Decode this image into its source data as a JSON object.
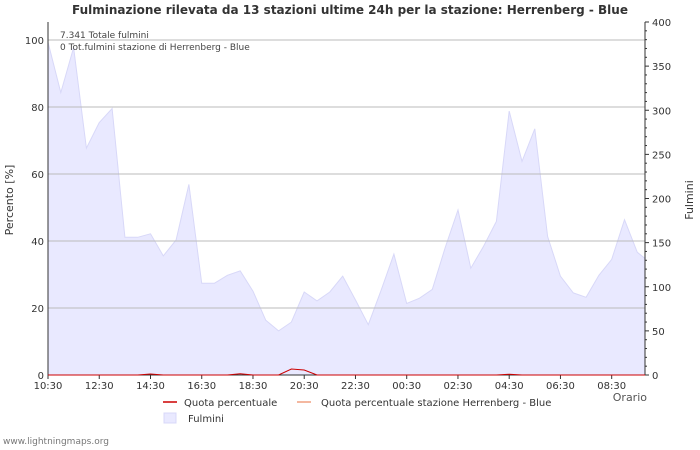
{
  "title": "Fulminazione rilevata da 13 stazioni ultime 24h per la stazione: Herrenberg - Blue",
  "annotations": {
    "total": "7.341 Totale fulmini",
    "station": "0 Tot.fulmini stazione di Herrenberg - Blue"
  },
  "footer": "www.lightningmaps.org",
  "colors": {
    "area_fill": "#e9e9ff",
    "area_stroke": "#d8d8f8",
    "quota_line": "#cc0000",
    "quota_station_line": "#f0a080",
    "grid": "#bbbbbb",
    "axis": "#333333"
  },
  "legend": [
    {
      "label": "Quota percentuale",
      "type": "line",
      "color": "#cc0000"
    },
    {
      "label": "Quota percentuale stazione Herrenberg - Blue",
      "type": "line",
      "color": "#f0a080"
    },
    {
      "label": "Fulmini",
      "type": "area",
      "color": "#e9e9ff"
    }
  ],
  "chart_data": {
    "type": "area",
    "title": "Fulminazione rilevata da 13 stazioni ultime 24h per la stazione: Herrenberg - Blue",
    "xlabel": "Orario",
    "ylabel": "Percento   [%]",
    "ylabel_right": "Fulmini",
    "ylim": [
      0,
      100
    ],
    "ylim_right": [
      0,
      400
    ],
    "yticks": [
      0,
      20,
      40,
      60,
      80,
      100
    ],
    "yticks_right": [
      0,
      50,
      100,
      150,
      200,
      250,
      300,
      350,
      400
    ],
    "xticks": [
      "10:30",
      "12:30",
      "14:30",
      "16:30",
      "18:30",
      "20:30",
      "22:30",
      "00:30",
      "02:30",
      "04:30",
      "06:30",
      "08:30"
    ],
    "grid": true,
    "legend_position": "bottom",
    "series": [
      {
        "name": "Fulmini",
        "axis": "right",
        "interval_minutes": 30,
        "start": "10:30",
        "values": [
          377,
          320,
          371,
          257,
          286,
          302,
          156,
          156,
          160,
          135,
          153,
          216,
          104,
          104,
          113,
          118,
          95,
          62,
          50,
          60,
          94,
          84,
          94,
          112,
          85,
          57,
          96,
          137,
          81,
          87,
          97,
          144,
          187,
          121,
          146,
          174,
          299,
          242,
          279,
          157,
          112,
          93,
          88,
          113,
          131,
          176,
          139,
          132
        ]
      },
      {
        "name": "Quota percentuale",
        "axis": "left",
        "interval_minutes": 30,
        "start": "10:30",
        "values": [
          0,
          0,
          0,
          0,
          0,
          0,
          0,
          0,
          0.3,
          0,
          0,
          0,
          0,
          0,
          0,
          0.4,
          0,
          0,
          0,
          1.8,
          1.5,
          0,
          0,
          0,
          0,
          0,
          0,
          0,
          0,
          0,
          0,
          0,
          0,
          0,
          0,
          0,
          0.2,
          0,
          0,
          0,
          0,
          0,
          0,
          0,
          0,
          0,
          0,
          0
        ]
      },
      {
        "name": "Quota percentuale stazione Herrenberg - Blue",
        "axis": "left",
        "values": [
          0
        ]
      }
    ]
  }
}
